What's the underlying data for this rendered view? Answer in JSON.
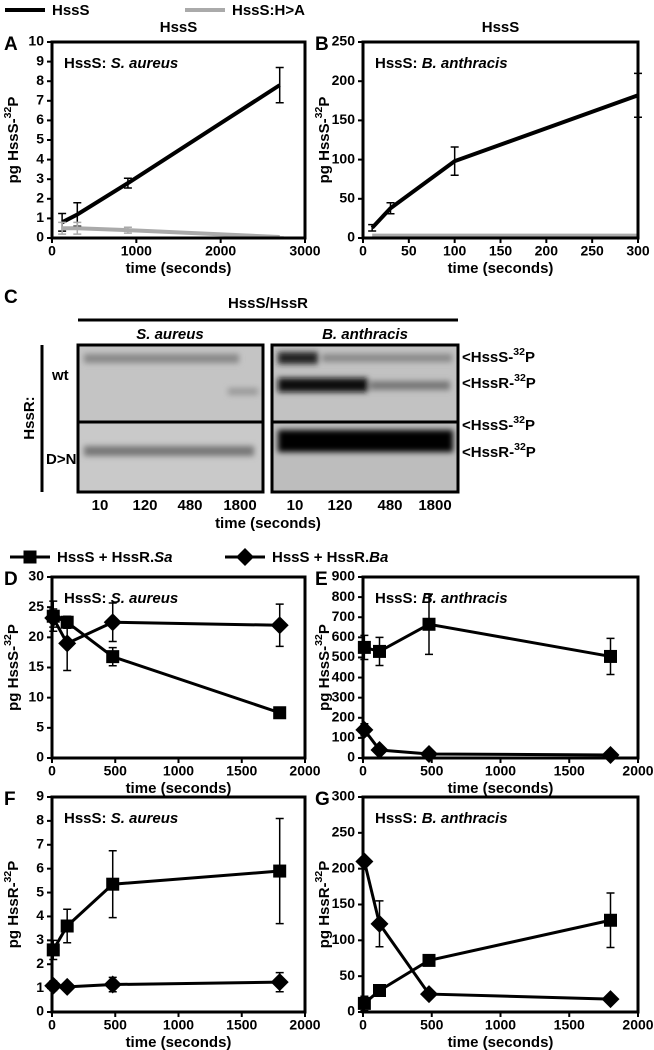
{
  "chart_data": [
    {
      "type": "line",
      "panel": "A",
      "title": "HssS",
      "annotation": "HssS: S. aureus",
      "xlabel": "time (seconds)",
      "ylabel": "pg HssS-32P",
      "x": [
        120,
        300,
        900,
        2700
      ],
      "xlim": [
        0,
        3000
      ],
      "xticks": [
        0,
        1000,
        2000,
        3000
      ],
      "ylim": [
        0,
        10
      ],
      "yticks": [
        0,
        1,
        2,
        3,
        4,
        5,
        6,
        7,
        8,
        9,
        10
      ],
      "series": [
        {
          "name": "HssS",
          "color": "#000000",
          "marker": "none",
          "values": [
            0.8,
            1.2,
            2.8,
            7.8
          ],
          "errors": [
            0.45,
            0.6,
            0.25,
            0.9
          ]
        },
        {
          "name": "HssS:H>A",
          "color": "#aaaaaa",
          "marker": "none",
          "values": [
            0.5,
            0.5,
            0.4,
            0.05
          ],
          "errors": [
            0.3,
            0.3,
            0.15,
            0
          ]
        }
      ]
    },
    {
      "type": "line",
      "panel": "B",
      "title": "HssS",
      "annotation": "HssS: B. anthracis",
      "xlabel": "time (seconds)",
      "ylabel": "pg HssS-32P",
      "x": [
        10,
        30,
        100,
        300
      ],
      "xlim": [
        0,
        300
      ],
      "xticks": [
        0,
        50,
        100,
        150,
        200,
        250,
        300
      ],
      "ylim": [
        0,
        250
      ],
      "yticks": [
        0,
        50,
        100,
        150,
        200,
        250
      ],
      "series": [
        {
          "color": "#000000",
          "marker": "none",
          "values": [
            13,
            38,
            98,
            182
          ],
          "errors": [
            4,
            7,
            18,
            28
          ]
        },
        {
          "color": "#aaaaaa",
          "marker": "none",
          "values": [
            3,
            3,
            3,
            3
          ]
        }
      ]
    },
    {
      "type": "line",
      "panel": "D",
      "annotation": "HssS: S. aureus",
      "xlabel": "time (seconds)",
      "ylabel": "pg HssS-32P",
      "x": [
        10,
        120,
        480,
        1800
      ],
      "xlim": [
        0,
        2000
      ],
      "xticks": [
        0,
        500,
        1000,
        1500,
        2000
      ],
      "ylim": [
        0,
        30
      ],
      "yticks": [
        0,
        5,
        10,
        15,
        20,
        25,
        30
      ],
      "series": [
        {
          "name": "HssS + HssR.Sa",
          "color": "#000000",
          "marker": "square",
          "values": [
            23.5,
            22.5,
            16.8,
            7.5
          ],
          "errors": [
            2.5,
            1,
            1.5,
            0.7
          ]
        },
        {
          "name": "HssS + HssR.Ba",
          "color": "#000000",
          "marker": "diamond",
          "values": [
            23.2,
            19,
            22.5,
            22
          ],
          "errors": [
            1.5,
            4.5,
            3.2,
            3.5
          ]
        }
      ]
    },
    {
      "type": "line",
      "panel": "E",
      "annotation": "HssS: B. anthracis",
      "xlabel": "time (seconds)",
      "ylabel": "pg HssS-32P",
      "x": [
        10,
        120,
        480,
        1800
      ],
      "xlim": [
        0,
        2000
      ],
      "xticks": [
        0,
        500,
        1000,
        1500,
        2000
      ],
      "ylim": [
        0,
        900
      ],
      "yticks": [
        0,
        100,
        200,
        300,
        400,
        500,
        600,
        700,
        800,
        900
      ],
      "series": [
        {
          "color": "#000000",
          "marker": "square",
          "values": [
            550,
            530,
            665,
            505
          ],
          "errors": [
            60,
            70,
            150,
            90
          ]
        },
        {
          "color": "#000000",
          "marker": "diamond",
          "values": [
            140,
            40,
            20,
            15
          ],
          "errors": [
            30,
            10,
            5,
            5
          ]
        }
      ]
    },
    {
      "type": "line",
      "panel": "F",
      "annotation": "HssS: S. aureus",
      "xlabel": "time (seconds)",
      "ylabel": "pg HssR-32P",
      "x": [
        10,
        120,
        480,
        1800
      ],
      "xlim": [
        0,
        2000
      ],
      "xticks": [
        0,
        500,
        1000,
        1500,
        2000
      ],
      "ylim": [
        0,
        9
      ],
      "yticks": [
        0,
        1,
        2,
        3,
        4,
        5,
        6,
        7,
        8,
        9
      ],
      "series": [
        {
          "color": "#000000",
          "marker": "square",
          "values": [
            2.6,
            3.6,
            5.35,
            5.9
          ],
          "errors": [
            0.4,
            0.7,
            1.4,
            2.2
          ]
        },
        {
          "color": "#000000",
          "marker": "diamond",
          "values": [
            1.1,
            1.05,
            1.15,
            1.25
          ],
          "errors": [
            0.2,
            0.1,
            0.3,
            0.4
          ]
        }
      ]
    },
    {
      "type": "line",
      "panel": "G",
      "annotation": "HssS: B. anthracis",
      "xlabel": "time (seconds)",
      "ylabel": "pg HssR-32P",
      "x": [
        10,
        120,
        480,
        1800
      ],
      "xlim": [
        0,
        2000
      ],
      "xticks": [
        0,
        500,
        1000,
        1500,
        2000
      ],
      "ylim": [
        0,
        300
      ],
      "yticks": [
        0,
        50,
        100,
        150,
        200,
        250,
        300
      ],
      "series": [
        {
          "color": "#000000",
          "marker": "square",
          "values": [
            12,
            30,
            72,
            128
          ],
          "errors": [
            10,
            5,
            5,
            38
          ]
        },
        {
          "color": "#000000",
          "marker": "diamond",
          "values": [
            210,
            123,
            25,
            18
          ],
          "errors": [
            5,
            32,
            5,
            3
          ]
        }
      ]
    }
  ],
  "gel": {
    "panel": "C",
    "header": "HssS/HssR",
    "row_title": "HssR:",
    "xlabel": "time (seconds)",
    "strains": [
      {
        "name": "S. aureus",
        "lanes": [
          "10",
          "120",
          "480",
          "1800"
        ]
      },
      {
        "name": "B. anthracis",
        "lanes": [
          "10",
          "120",
          "480",
          "1800"
        ]
      }
    ],
    "rows": [
      {
        "label": "wt",
        "bands": [
          "<HssS-32P",
          "<HssR-32P"
        ]
      },
      {
        "label": "D>N",
        "bands": [
          "<HssS-32P",
          "<HssR-32P"
        ]
      }
    ]
  }
}
